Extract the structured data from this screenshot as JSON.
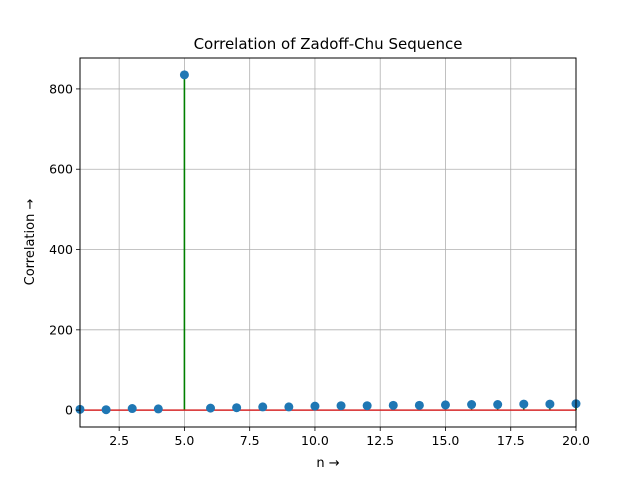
{
  "chart_data": {
    "type": "stem",
    "title": "Correlation of Zadoff-Chu Sequence",
    "xlabel": "n →",
    "ylabel": "Correlation →",
    "xlim": [
      1,
      20
    ],
    "ylim": [
      -42,
      877
    ],
    "xticks": [
      2.5,
      5.0,
      7.5,
      10.0,
      12.5,
      15.0,
      17.5,
      20.0
    ],
    "xtick_labels": [
      "2.5",
      "5.0",
      "7.5",
      "10.0",
      "12.5",
      "15.0",
      "17.5",
      "20.0"
    ],
    "yticks": [
      0,
      200,
      400,
      600,
      800
    ],
    "ytick_labels": [
      "0",
      "200",
      "400",
      "600",
      "800"
    ],
    "grid": true,
    "x": [
      1,
      2,
      3,
      4,
      5,
      6,
      7,
      8,
      9,
      10,
      11,
      12,
      13,
      14,
      15,
      16,
      17,
      18,
      19,
      20
    ],
    "values": [
      2,
      1,
      4,
      3,
      835,
      5,
      6,
      8,
      8,
      10,
      11,
      11,
      12,
      12,
      13,
      14,
      14,
      15,
      15,
      16
    ],
    "colors": {
      "marker": "#1f77b4",
      "stem": "#008000",
      "baseline": "#d62728",
      "grid": "#b0b0b0",
      "axes": "#000000"
    }
  }
}
